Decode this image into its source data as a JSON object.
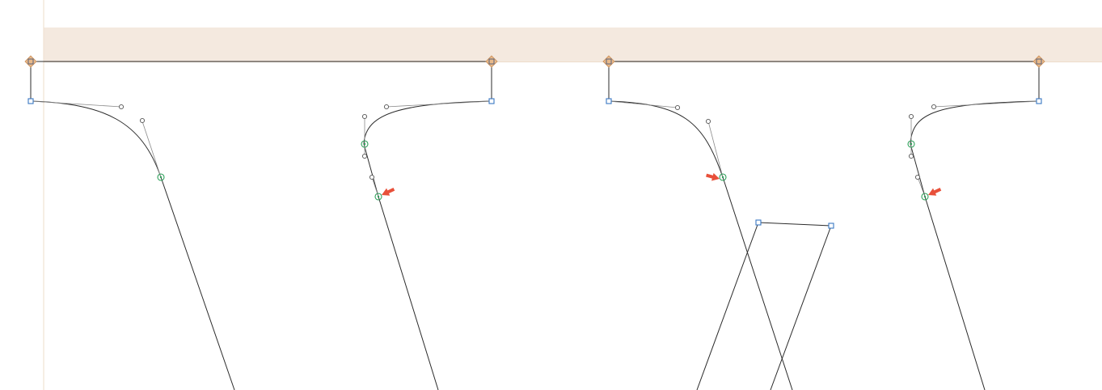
{
  "canvas": {
    "background": "#ffffff",
    "metrics_band_color": "#f4e9df",
    "sidebearing_line_color": "#f1e2d3",
    "outline_color": "#2b2b2b"
  },
  "marker_icons": {
    "corner_point": "square-node-icon",
    "smooth_point": "circle-node-icon",
    "offcurve_point": "bezier-handle-icon",
    "anchor": "diamond-anchor-icon",
    "warning": "red-arrow-warning-icon"
  },
  "colors": {
    "corner_point": "#3a78c4",
    "smooth_point": "#2ea05a",
    "anchor": "#e9b98a",
    "warning_arrow": "#e8503a"
  }
}
